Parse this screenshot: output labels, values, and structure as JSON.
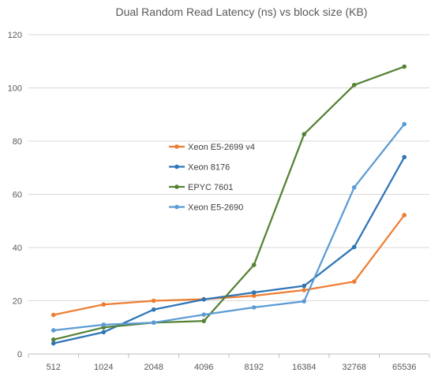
{
  "chart_data": {
    "type": "line",
    "title": "Dual Random Read Latency (ns) vs block size (KB)",
    "xlabel": "",
    "ylabel": "",
    "categories": [
      "512",
      "1024",
      "2048",
      "4096",
      "8192",
      "16384",
      "32768",
      "65536"
    ],
    "ylim": [
      0,
      120
    ],
    "yticks": [
      0,
      20,
      40,
      60,
      80,
      100,
      120
    ],
    "grid": true,
    "legend_position": "center",
    "series": [
      {
        "name": "Xeon E5-2699 v4",
        "color": "#ED7D31",
        "values": [
          14.7,
          18.6,
          20.0,
          20.6,
          21.9,
          24.0,
          27.2,
          52.2
        ]
      },
      {
        "name": "Xeon 8176",
        "color": "#2E75B6",
        "values": [
          4.0,
          8.2,
          16.7,
          20.5,
          23.1,
          25.6,
          40.2,
          74.0
        ]
      },
      {
        "name": "EPYC 7601",
        "color": "#548235",
        "values": [
          5.4,
          10.0,
          11.8,
          12.4,
          33.5,
          82.6,
          101.1,
          108.0
        ]
      },
      {
        "name": "Xeon E5-2690",
        "color": "#5B9BD5",
        "values": [
          8.9,
          11.0,
          11.8,
          14.8,
          17.5,
          19.8,
          62.6,
          86.4
        ]
      }
    ]
  }
}
